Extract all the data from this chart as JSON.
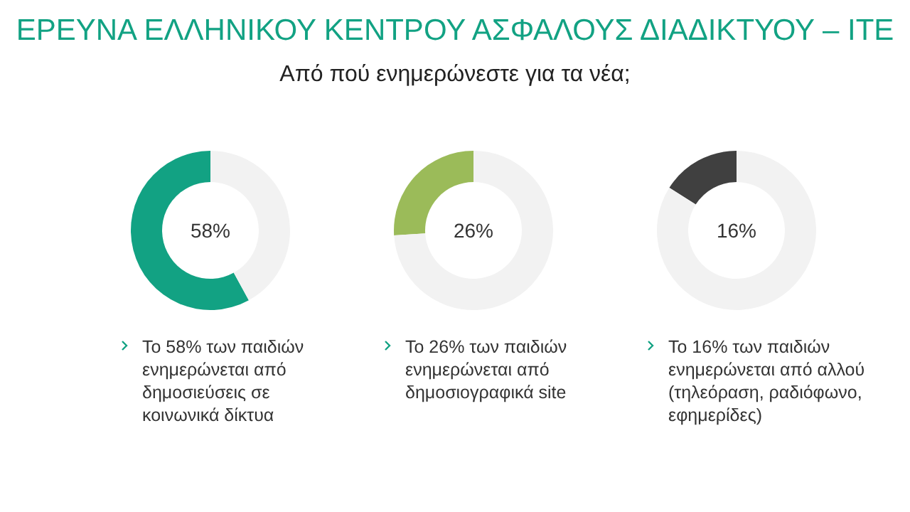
{
  "chart_data": [
    {
      "type": "other",
      "title": "ΕΡΕΥΝΑ ΕΛΛΗΝΙΚΟΥ ΚΕΝΤΡΟΥ ΑΣΦΑΛΟΥΣ ΔΙΑΔΙΚΤΥΟΥ – ΙΤΕ",
      "subtitle": "Από πού ενημερώνεστε για τα νέα;"
    },
    {
      "type": "donut",
      "categories": [
        null,
        null
      ],
      "values": [
        58,
        42
      ],
      "colors": [
        "#12a283",
        "#f2f2f2"
      ],
      "annotations": [
        "58%",
        "Το 58% των παιδιών ενημερώνεται από δημοσιεύσεις σε κοινωνικά δίκτυα"
      ]
    },
    {
      "type": "donut",
      "categories": [
        null,
        null
      ],
      "values": [
        26,
        74
      ],
      "colors": [
        "#9bbb59",
        "#f2f2f2"
      ],
      "annotations": [
        "26%",
        "Το 26% των παιδιών ενημερώνεται από δημοσιογραφικά site"
      ]
    },
    {
      "type": "donut",
      "categories": [
        null,
        null
      ],
      "values": [
        16,
        84
      ],
      "colors": [
        "#404040",
        "#f2f2f2"
      ],
      "annotations": [
        "16%",
        "Το 16% των παιδιών ενημερώνεται από αλλού (τηλεόραση, ραδιόφωνο, εφημερίδες)"
      ]
    }
  ]
}
